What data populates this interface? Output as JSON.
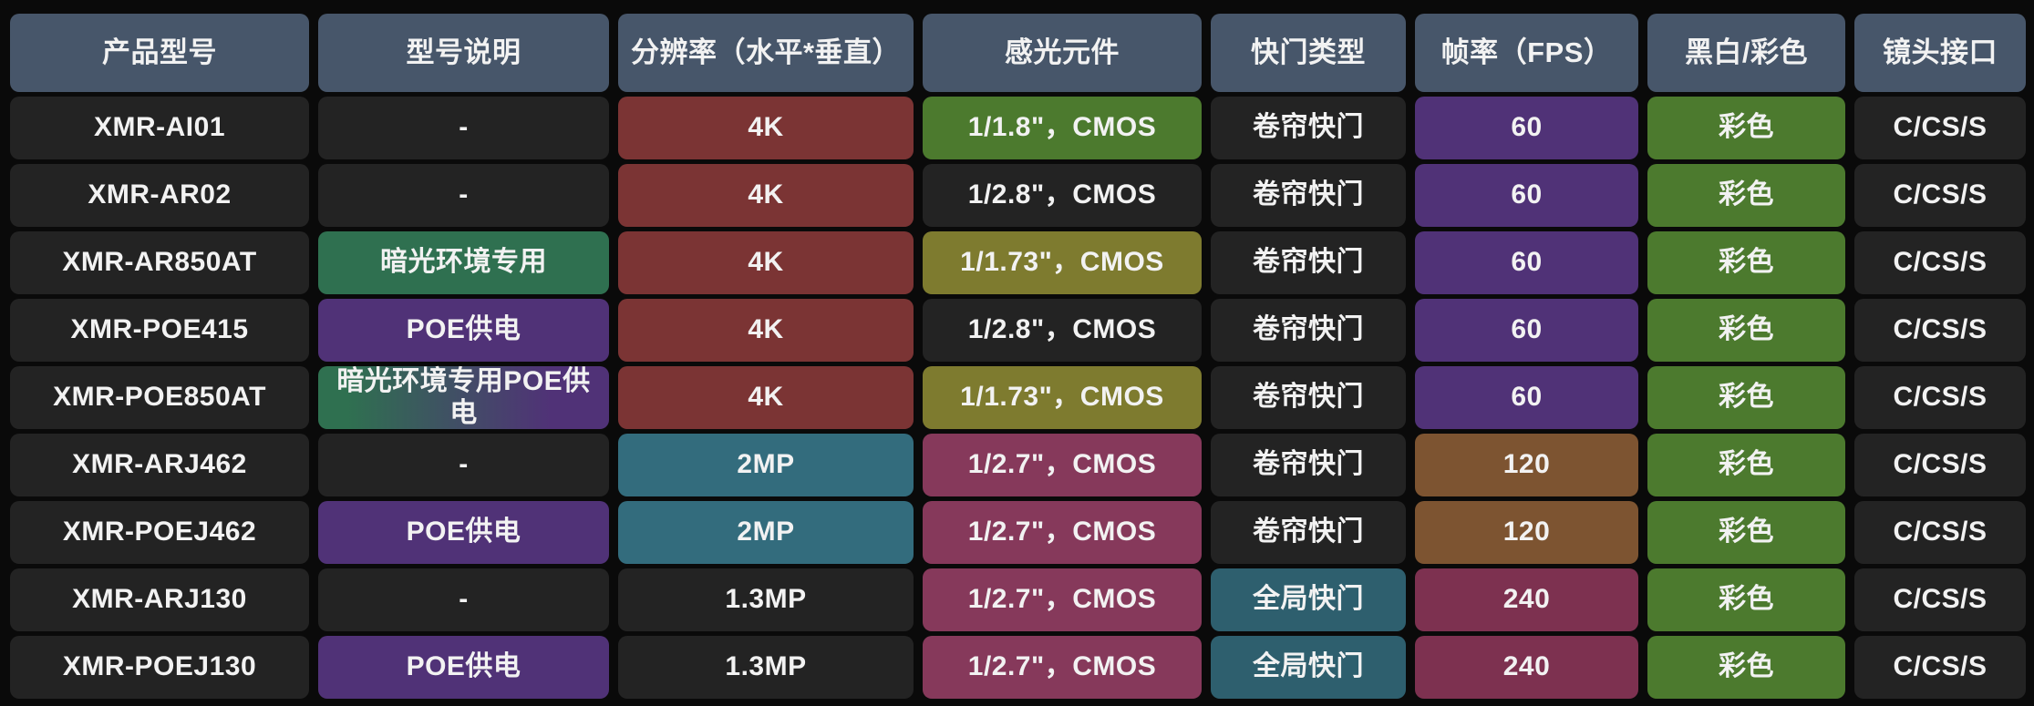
{
  "palette": {
    "background": "#0a0a0a",
    "header": "#47566a",
    "dark": "#232323",
    "red": "#7b3434",
    "green": "#4c7a2e",
    "olive": "#7e7b2f",
    "emerald": "#2f7050",
    "purple": "#503277",
    "brown": "#7d5431",
    "teal": "#336c7d",
    "tealDark": "#2e5f6e",
    "maroon": "#86395b",
    "maroon240": "#7d3150",
    "text": "#f2f2f2"
  },
  "chart_data": {
    "type": "table",
    "columns": [
      "产品型号",
      "型号说明",
      "分辨率（水平*垂直）",
      "感光元件",
      "快门类型",
      "帧率（FPS）",
      "黑白/彩色",
      "镜头接口"
    ],
    "rows": [
      [
        {
          "v": "XMR-AI01",
          "c": "dark"
        },
        {
          "v": "-",
          "c": "dark"
        },
        {
          "v": "4K",
          "c": "red"
        },
        {
          "v": "1/1.8\"，CMOS",
          "c": "green"
        },
        {
          "v": "卷帘快门",
          "c": "dark"
        },
        {
          "v": "60",
          "c": "purple"
        },
        {
          "v": "彩色",
          "c": "green"
        },
        {
          "v": "C/CS/S",
          "c": "dark"
        }
      ],
      [
        {
          "v": "XMR-AR02",
          "c": "dark"
        },
        {
          "v": "-",
          "c": "dark"
        },
        {
          "v": "4K",
          "c": "red"
        },
        {
          "v": "1/2.8\"，CMOS",
          "c": "dark"
        },
        {
          "v": "卷帘快门",
          "c": "dark"
        },
        {
          "v": "60",
          "c": "purple"
        },
        {
          "v": "彩色",
          "c": "green"
        },
        {
          "v": "C/CS/S",
          "c": "dark"
        }
      ],
      [
        {
          "v": "XMR-AR850AT",
          "c": "dark"
        },
        {
          "v": "暗光环境专用",
          "c": "emerald"
        },
        {
          "v": "4K",
          "c": "red"
        },
        {
          "v": "1/1.73\"，CMOS",
          "c": "olive"
        },
        {
          "v": "卷帘快门",
          "c": "dark"
        },
        {
          "v": "60",
          "c": "purple"
        },
        {
          "v": "彩色",
          "c": "green"
        },
        {
          "v": "C/CS/S",
          "c": "dark"
        }
      ],
      [
        {
          "v": "XMR-POE415",
          "c": "dark"
        },
        {
          "v": "POE供电",
          "c": "purple"
        },
        {
          "v": "4K",
          "c": "red"
        },
        {
          "v": "1/2.8\"，CMOS",
          "c": "dark"
        },
        {
          "v": "卷帘快门",
          "c": "dark"
        },
        {
          "v": "60",
          "c": "purple"
        },
        {
          "v": "彩色",
          "c": "green"
        },
        {
          "v": "C/CS/S",
          "c": "dark"
        }
      ],
      [
        {
          "v": "XMR-POE850AT",
          "c": "dark"
        },
        {
          "v": "暗光环境专用POE供电",
          "c": "emerald_purple"
        },
        {
          "v": "4K",
          "c": "red"
        },
        {
          "v": "1/1.73\"，CMOS",
          "c": "olive"
        },
        {
          "v": "卷帘快门",
          "c": "dark"
        },
        {
          "v": "60",
          "c": "purple"
        },
        {
          "v": "彩色",
          "c": "green"
        },
        {
          "v": "C/CS/S",
          "c": "dark"
        }
      ],
      [
        {
          "v": "XMR-ARJ462",
          "c": "dark"
        },
        {
          "v": "-",
          "c": "dark"
        },
        {
          "v": "2MP",
          "c": "teal"
        },
        {
          "v": "1/2.7\"，CMOS",
          "c": "maroon"
        },
        {
          "v": "卷帘快门",
          "c": "dark"
        },
        {
          "v": "120",
          "c": "brown"
        },
        {
          "v": "彩色",
          "c": "green"
        },
        {
          "v": "C/CS/S",
          "c": "dark"
        }
      ],
      [
        {
          "v": "XMR-POEJ462",
          "c": "dark"
        },
        {
          "v": "POE供电",
          "c": "purple"
        },
        {
          "v": "2MP",
          "c": "teal"
        },
        {
          "v": "1/2.7\"，CMOS",
          "c": "maroon"
        },
        {
          "v": "卷帘快门",
          "c": "dark"
        },
        {
          "v": "120",
          "c": "brown"
        },
        {
          "v": "彩色",
          "c": "green"
        },
        {
          "v": "C/CS/S",
          "c": "dark"
        }
      ],
      [
        {
          "v": "XMR-ARJ130",
          "c": "dark"
        },
        {
          "v": "-",
          "c": "dark"
        },
        {
          "v": "1.3MP",
          "c": "dark"
        },
        {
          "v": "1/2.7\"，CMOS",
          "c": "maroon"
        },
        {
          "v": "全局快门",
          "c": "tealDark"
        },
        {
          "v": "240",
          "c": "maroon240"
        },
        {
          "v": "彩色",
          "c": "green"
        },
        {
          "v": "C/CS/S",
          "c": "dark"
        }
      ],
      [
        {
          "v": "XMR-POEJ130",
          "c": "dark"
        },
        {
          "v": "POE供电",
          "c": "purple"
        },
        {
          "v": "1.3MP",
          "c": "dark"
        },
        {
          "v": "1/2.7\"，CMOS",
          "c": "maroon"
        },
        {
          "v": "全局快门",
          "c": "tealDark"
        },
        {
          "v": "240",
          "c": "maroon240"
        },
        {
          "v": "彩色",
          "c": "green"
        },
        {
          "v": "C/CS/S",
          "c": "dark"
        }
      ]
    ]
  }
}
